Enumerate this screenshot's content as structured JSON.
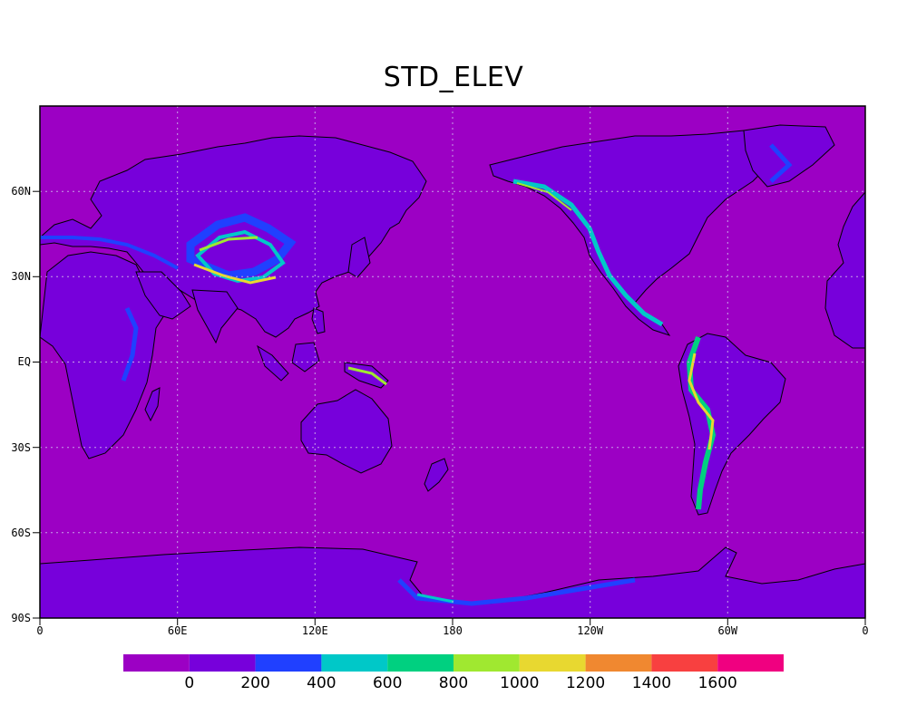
{
  "title": "STD_ELEV",
  "map": {
    "ocean_color": "#9c00c4",
    "land_color": "#7700db",
    "lon_ticks": [
      "0",
      "60E",
      "120E",
      "180",
      "120W",
      "60W",
      "0"
    ],
    "lat_ticks": [
      "60N",
      "30N",
      "EQ",
      "30S",
      "60S",
      "90S"
    ],
    "gridlines": "dotted"
  },
  "colorbar": {
    "colors": [
      "#9c00c4",
      "#7700db",
      "#2040ff",
      "#00c8c8",
      "#00d080",
      "#a0e830",
      "#e8d830",
      "#f08830",
      "#f84040",
      "#f00080"
    ],
    "labels": [
      "0",
      "200",
      "400",
      "600",
      "800",
      "1000",
      "1200",
      "1400",
      "1600"
    ]
  }
}
